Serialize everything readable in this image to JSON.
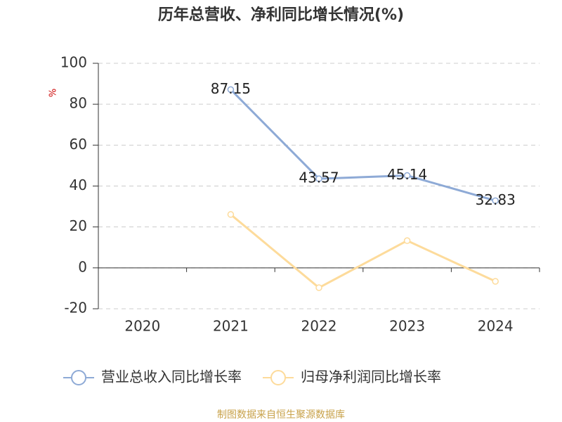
{
  "chart_data": {
    "type": "line",
    "title": "历年总营收、净利同比增长情况(%)",
    "y_label": "%",
    "categories": [
      "2020",
      "2021",
      "2022",
      "2023",
      "2024"
    ],
    "series": [
      {
        "name": "营业总收入同比增长率",
        "color": "#8eaad6",
        "labels": true,
        "values": [
          null,
          87.15,
          43.57,
          45.14,
          32.83
        ]
      },
      {
        "name": "归母净利润同比增长率",
        "color": "#fddb9b",
        "labels": false,
        "values": [
          null,
          26.1,
          -9.7,
          13.3,
          -6.6
        ]
      }
    ],
    "ylim": [
      -20,
      100
    ],
    "yticks": [
      -20,
      0,
      20,
      40,
      60,
      80,
      100
    ],
    "grid": true,
    "legend": "bottom",
    "source": "制图数据来自恒生聚源数据库"
  }
}
